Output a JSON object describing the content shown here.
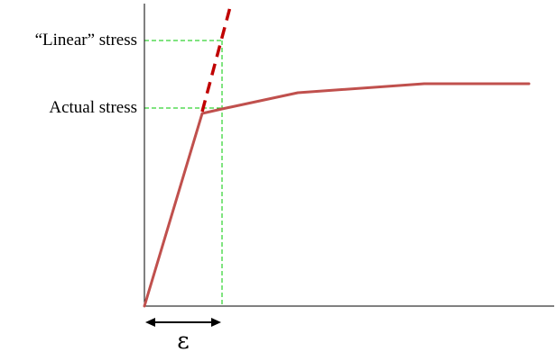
{
  "labels": {
    "linear_stress": "“Linear” stress",
    "actual_stress": "Actual stress",
    "strain_symbol": "ε"
  },
  "colors": {
    "stress_curve": "#c0504d",
    "linear_extension": "#c00000",
    "guide_lines": "#00c800",
    "axes": "#000000",
    "strain_arrow": "#000000"
  },
  "icons": {
    "strain_arrow": "double-headed-arrow"
  }
}
